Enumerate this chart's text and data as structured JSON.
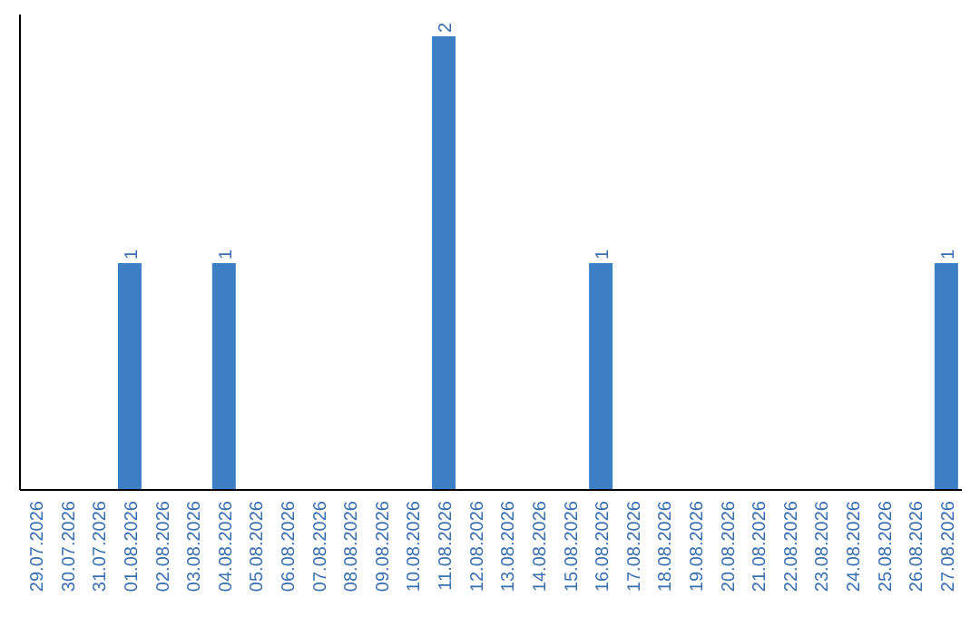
{
  "chart_data": {
    "type": "bar",
    "categories": [
      "29.07.2026",
      "30.07.2026",
      "31.07.2026",
      "01.08.2026",
      "02.08.2026",
      "03.08.2026",
      "04.08.2026",
      "05.08.2026",
      "06.08.2026",
      "07.08.2026",
      "08.08.2026",
      "09.08.2026",
      "10.08.2026",
      "11.08.2026",
      "12.08.2026",
      "13.08.2026",
      "14.08.2026",
      "15.08.2026",
      "16.08.2026",
      "17.08.2026",
      "18.08.2026",
      "19.08.2026",
      "20.08.2026",
      "21.08.2026",
      "22.08.2026",
      "23.08.2026",
      "24.08.2026",
      "25.08.2026",
      "26.08.2026",
      "27.08.2026"
    ],
    "values": [
      0,
      0,
      0,
      1,
      0,
      0,
      1,
      0,
      0,
      0,
      0,
      0,
      0,
      2,
      0,
      0,
      0,
      0,
      1,
      0,
      0,
      0,
      0,
      0,
      0,
      0,
      0,
      0,
      0,
      1
    ],
    "value_labels": [
      null,
      null,
      null,
      "1",
      null,
      null,
      "1",
      null,
      null,
      null,
      null,
      null,
      null,
      "2",
      null,
      null,
      null,
      null,
      "1",
      null,
      null,
      null,
      null,
      null,
      null,
      null,
      null,
      null,
      null,
      "1"
    ],
    "color": "#3d7fc4"
  }
}
